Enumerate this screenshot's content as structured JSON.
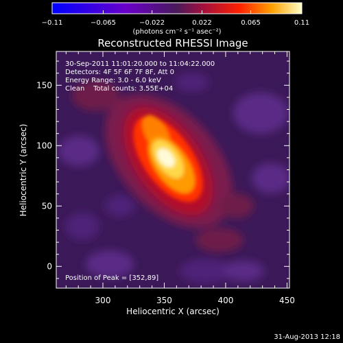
{
  "chart_data": {
    "type": "heatmap",
    "title": "Reconstructed RHESSI Image",
    "xlabel": "Heliocentric X (arcsec)",
    "ylabel": "Heliocentric Y (arcsec)",
    "xlim": [
      262,
      452
    ],
    "ylim": [
      -18,
      178
    ],
    "x_ticks": [
      300,
      350,
      400,
      450
    ],
    "y_ticks": [
      0,
      50,
      100,
      150
    ],
    "colorbar": {
      "label": "(photons cm⁻² s⁻¹ asec⁻²)",
      "ticks": [
        -0.11,
        -0.065,
        -0.022,
        0.022,
        0.065,
        0.11
      ],
      "tick_labels": [
        "−0.11",
        "−0.065",
        "−0.022",
        "0.022",
        "0.065",
        "0.11"
      ],
      "range": [
        -0.11,
        0.11
      ]
    },
    "annotations": [
      "30-Sep-2011 11:01:20.000 to 11:04:22.000",
      "Detectors: 4F 5F 6F 7F 8F, Att 0",
      "Energy Range: 3.0 - 6.0 keV",
      "Clean    Total counts: 3.55E+04"
    ],
    "peak_label": "Position of Peak = [352,89]",
    "peak": [
      352,
      89
    ],
    "grid": false
  },
  "footer": {
    "timestamp": "31-Aug-2013 12:18"
  },
  "colors": {
    "background": "#000000",
    "foreground": "#ffffff"
  }
}
